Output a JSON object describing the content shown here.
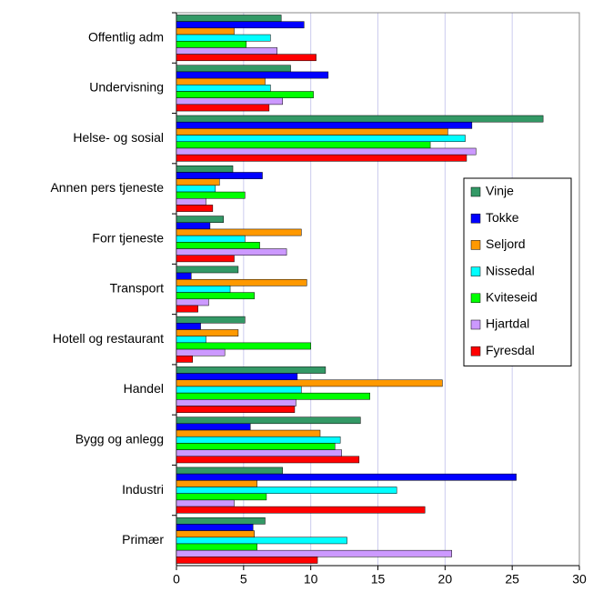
{
  "chart_data": {
    "type": "bar",
    "orientation": "horizontal",
    "categories": [
      "Offentlig adm",
      "Undervisning",
      "Helse- og sosial",
      "Annen pers tjeneste",
      "Forr tjeneste",
      "Transport",
      "Hotell og restaurant",
      "Handel",
      "Bygg og anlegg",
      "Industri",
      "Primær"
    ],
    "series": [
      {
        "name": "Vinje",
        "color": "#339966",
        "values": [
          7.8,
          8.5,
          27.3,
          4.2,
          3.5,
          4.6,
          5.1,
          11.1,
          13.7,
          7.9,
          6.6
        ]
      },
      {
        "name": "Tokke",
        "color": "#0000ff",
        "values": [
          9.5,
          11.3,
          22.0,
          6.4,
          2.5,
          1.1,
          1.8,
          9.0,
          5.5,
          25.3,
          5.7
        ]
      },
      {
        "name": "Seljord",
        "color": "#ff9900",
        "values": [
          4.3,
          6.6,
          20.2,
          3.2,
          9.3,
          9.7,
          4.6,
          19.8,
          10.7,
          6.0,
          5.8
        ]
      },
      {
        "name": "Nissedal",
        "color": "#00ffff",
        "values": [
          7.0,
          7.0,
          21.5,
          2.9,
          5.1,
          4.0,
          2.2,
          9.3,
          12.2,
          16.4,
          12.7
        ]
      },
      {
        "name": "Kviteseid",
        "color": "#00ff00",
        "values": [
          5.2,
          10.2,
          18.9,
          5.1,
          6.2,
          5.8,
          10.0,
          14.4,
          11.8,
          6.7,
          6.0
        ]
      },
      {
        "name": "Hjartdal",
        "color": "#cc99ff",
        "values": [
          7.5,
          7.9,
          22.3,
          2.2,
          8.2,
          2.4,
          3.6,
          8.9,
          12.3,
          4.3,
          20.5
        ]
      },
      {
        "name": "Fyresdal",
        "color": "#ff0000",
        "values": [
          10.4,
          6.9,
          21.6,
          2.7,
          4.3,
          1.6,
          1.2,
          8.8,
          13.6,
          18.5,
          10.5
        ]
      }
    ],
    "xlim": [
      0,
      30
    ],
    "xticks": [
      0,
      5,
      10,
      15,
      20,
      25,
      30
    ],
    "grid": true,
    "legend": "right"
  }
}
